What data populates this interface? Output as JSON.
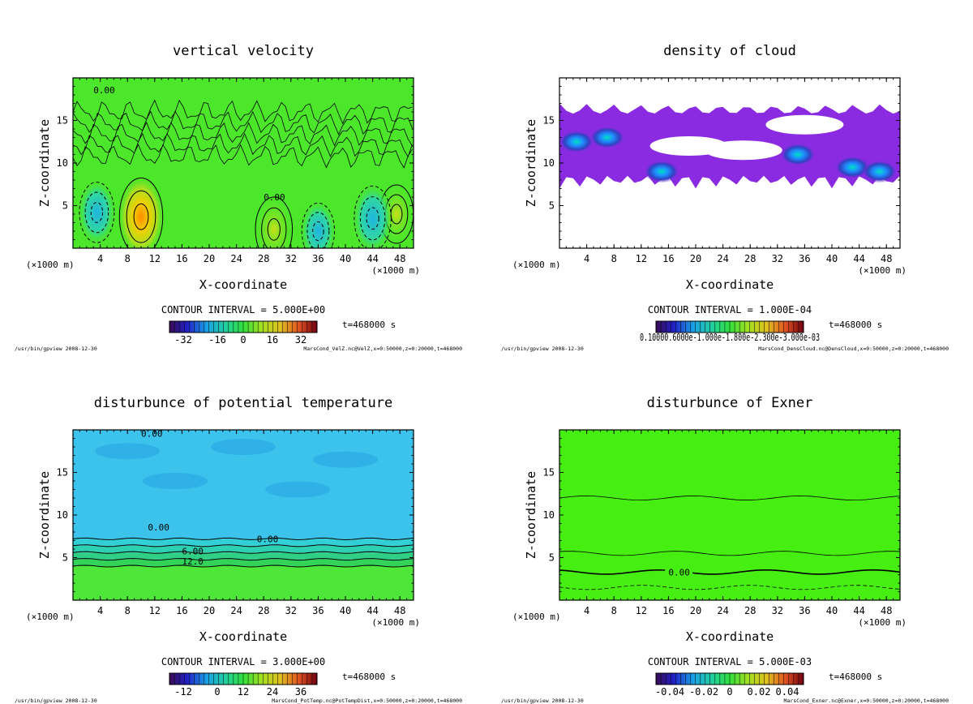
{
  "footer": {
    "program": "/usr/bin/gpview",
    "date": "2008-12-30"
  },
  "chart_data": [
    {
      "type": "heatmap",
      "title": "vertical velocity",
      "xlabel": "X-coordinate",
      "ylabel": "Z-coordinate",
      "x_unit": "(×1000 m)",
      "xlim": [
        0,
        50
      ],
      "ylim": [
        0,
        20
      ],
      "x_ticks": [
        4,
        8,
        12,
        16,
        20,
        24,
        28,
        32,
        36,
        40,
        44,
        48
      ],
      "y_ticks": [
        5,
        10,
        15
      ],
      "contour_interval_text": "CONTOUR INTERVAL = 5.000E+00",
      "time_text": "t=468000 s",
      "colorbar_ticks": [
        "-32",
        "-16",
        "0",
        "16",
        "32"
      ],
      "source_text": "MarsCond_VelZ.nc@VelZ,x=0:50000,z=0:20000,t=468000",
      "contour_labels": [
        "0.00",
        "0.00"
      ],
      "background": "#4ce62b",
      "features": [
        {
          "x": 10,
          "z": 3.7,
          "value": 30
        },
        {
          "x": 29.5,
          "z": 2.2,
          "value": 18
        },
        {
          "x": 47.5,
          "z": 4,
          "value": 12
        },
        {
          "x": 44,
          "z": 3.5,
          "value": -18
        },
        {
          "x": 3.5,
          "z": 4.2,
          "value": -14
        },
        {
          "x": 36,
          "z": 2,
          "value": -10
        }
      ]
    },
    {
      "type": "heatmap",
      "title": "density of cloud",
      "xlabel": "X-coordinate",
      "ylabel": "Z-coordinate",
      "x_unit": "(×1000 m)",
      "xlim": [
        0,
        50
      ],
      "ylim": [
        0,
        20
      ],
      "x_ticks": [
        4,
        8,
        12,
        16,
        20,
        24,
        28,
        32,
        36,
        40,
        44,
        48
      ],
      "y_ticks": [
        5,
        10,
        15
      ],
      "contour_interval_text": "CONTOUR INTERVAL = 1.000E-04",
      "time_text": "t=468000 s",
      "colorbar_ticks_text": "0.10000.6000e-1.000e-1.800e-2.300e-3.000e-03",
      "source_text": "MarsCond_DensCloud.nc@DensCloud,x=0:50000,z=0:20000,t=468000",
      "cloud_band_z": [
        7,
        17
      ],
      "cloud_color": "#8a2be2",
      "cloud_peaks": [
        {
          "x": 2.5,
          "z": 12.5
        },
        {
          "x": 7,
          "z": 13
        },
        {
          "x": 15,
          "z": 9
        },
        {
          "x": 35,
          "z": 11
        },
        {
          "x": 43,
          "z": 9.5
        },
        {
          "x": 47,
          "z": 9
        }
      ]
    },
    {
      "type": "heatmap",
      "title": "disturbunce of potential temperature",
      "xlabel": "X-coordinate",
      "ylabel": "Z-coordinate",
      "x_unit": "(×1000 m)",
      "xlim": [
        0,
        50
      ],
      "ylim": [
        0,
        20
      ],
      "x_ticks": [
        4,
        8,
        12,
        16,
        20,
        24,
        28,
        32,
        36,
        40,
        44,
        48
      ],
      "y_ticks": [
        5,
        10,
        15
      ],
      "contour_interval_text": "CONTOUR INTERVAL = 3.000E+00",
      "time_text": "t=468000 s",
      "colorbar_ticks": [
        "-12",
        "0",
        "12",
        "24",
        "36"
      ],
      "source_text": "MarsCond_PotTemp.nc@PotTempDist,x=0:50000,z=0:20000,t=468000",
      "contour_labels": [
        "0.00",
        "0.00",
        "0.00",
        "6.00",
        "12.0"
      ],
      "layers": [
        {
          "z_top": 4,
          "color": "#4fe63a"
        },
        {
          "z_top": 4.8,
          "color": "#33d35a"
        },
        {
          "z_top": 5.6,
          "color": "#2fcf86"
        },
        {
          "z_top": 6.4,
          "color": "#2ed0b2"
        },
        {
          "z_top": 7.2,
          "color": "#33cfd6"
        },
        {
          "z_top": 20,
          "color": "#3cc3ec"
        }
      ]
    },
    {
      "type": "heatmap",
      "title": "disturbunce of Exner",
      "xlabel": "X-coordinate",
      "ylabel": "Z-coordinate",
      "x_unit": "(×1000 m)",
      "xlim": [
        0,
        50
      ],
      "ylim": [
        0,
        20
      ],
      "x_ticks": [
        4,
        8,
        12,
        16,
        20,
        24,
        28,
        32,
        36,
        40,
        44,
        48
      ],
      "y_ticks": [
        5,
        10,
        15
      ],
      "contour_interval_text": "CONTOUR INTERVAL = 5.000E-03",
      "time_text": "t=468000 s",
      "colorbar_ticks": [
        "-0.04",
        "-0.02",
        "0",
        "0.02",
        "0.04"
      ],
      "source_text": "MarsCond_Exner.nc@Exner,x=0:50000,z=0:20000,t=468000",
      "contour_labels": [
        "0.00"
      ],
      "background": "#47ee12",
      "contours_z": [
        12,
        5.5,
        3.3,
        1.5
      ]
    }
  ]
}
